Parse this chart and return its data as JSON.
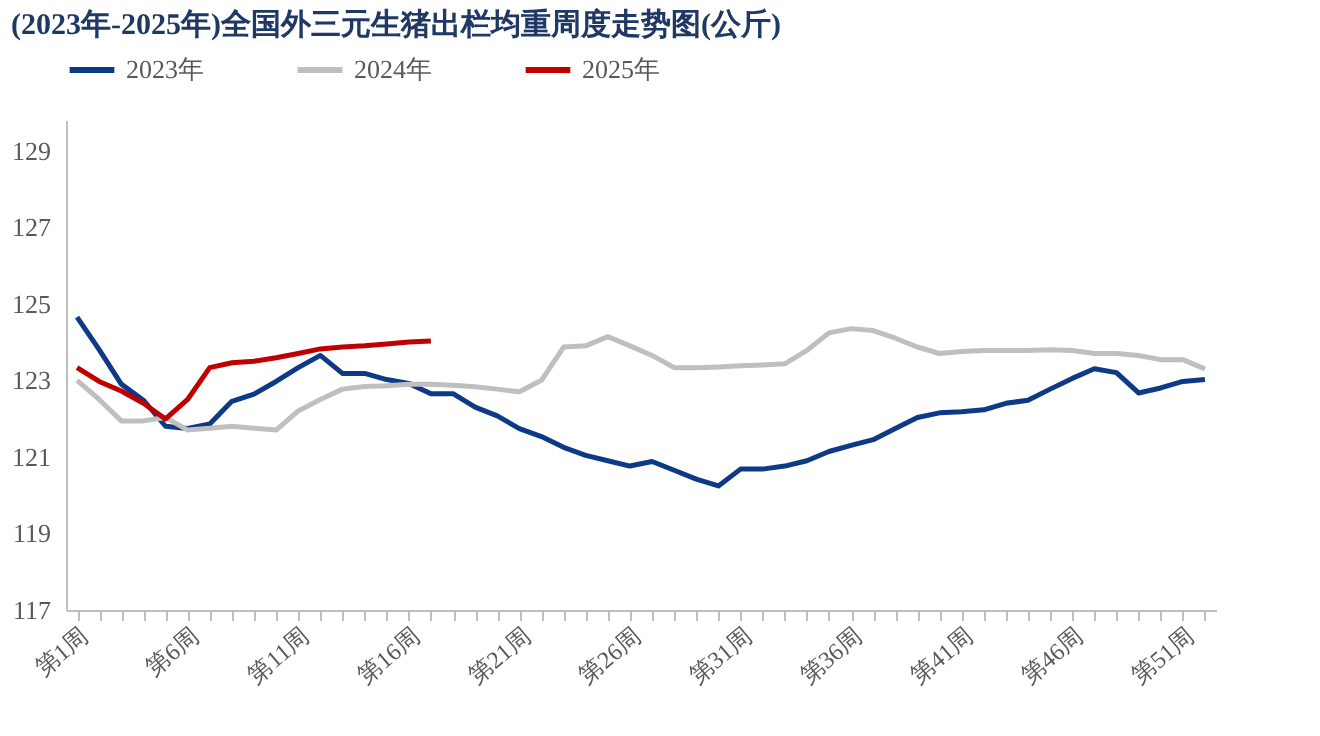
{
  "chart_data": {
    "type": "line",
    "title": "(2023年-2025年)全国外三元生猪出栏均重周度走势图(公斤)",
    "categories": [
      "第1周",
      null,
      null,
      null,
      null,
      "第6周",
      null,
      null,
      null,
      null,
      "第11周",
      null,
      null,
      null,
      null,
      "第16周",
      null,
      null,
      null,
      null,
      "第21周",
      null,
      null,
      null,
      null,
      "第26周",
      null,
      null,
      null,
      null,
      "第31周",
      null,
      null,
      null,
      null,
      "第36周",
      null,
      null,
      null,
      null,
      "第41周",
      null,
      null,
      null,
      null,
      "第46周",
      null,
      null,
      null,
      null,
      "第51周",
      null
    ],
    "series": [
      {
        "name": "2023年",
        "color": "#0d3a86",
        "values": [
          124.65,
          123.8,
          122.9,
          122.48,
          121.8,
          121.74,
          121.86,
          122.45,
          122.64,
          122.97,
          123.33,
          123.65,
          123.18,
          123.18,
          123.02,
          122.92,
          122.65,
          122.65,
          122.3,
          122.07,
          121.74,
          121.53,
          121.25,
          121.04,
          120.9,
          120.76,
          120.88,
          120.65,
          120.42,
          120.24,
          120.68,
          120.68,
          120.76,
          120.9,
          121.14,
          121.3,
          121.45,
          121.74,
          122.03,
          122.15,
          122.18,
          122.23,
          122.4,
          122.48,
          122.77,
          123.05,
          123.3,
          123.2,
          122.67,
          122.8,
          122.97,
          123.02
        ]
      },
      {
        "name": "2024年",
        "color": "#bfbfbf",
        "values": [
          123.0,
          122.5,
          121.94,
          121.94,
          122.03,
          121.7,
          121.75,
          121.8,
          121.75,
          121.7,
          122.2,
          122.5,
          122.77,
          122.84,
          122.86,
          122.9,
          122.9,
          122.87,
          122.83,
          122.77,
          122.7,
          123.0,
          123.87,
          123.9,
          124.14,
          123.9,
          123.65,
          123.33,
          123.33,
          123.35,
          123.38,
          123.4,
          123.43,
          123.78,
          124.24,
          124.35,
          124.3,
          124.1,
          123.87,
          123.7,
          123.75,
          123.78,
          123.78,
          123.78,
          123.8,
          123.78,
          123.7,
          123.7,
          123.65,
          123.54,
          123.54,
          123.3
        ]
      },
      {
        "name": "2025年",
        "color": "#c00000",
        "values": [
          123.33,
          122.97,
          122.72,
          122.4,
          121.99,
          122.5,
          123.33,
          123.46,
          123.5,
          123.59,
          123.7,
          123.82,
          123.87,
          123.9,
          123.95,
          124.0,
          124.03,
          null,
          null,
          null,
          null,
          null,
          null,
          null,
          null,
          null,
          null,
          null,
          null,
          null,
          null,
          null,
          null,
          null,
          null,
          null,
          null,
          null,
          null,
          null,
          null,
          null,
          null,
          null,
          null,
          null,
          null,
          null,
          null,
          null,
          null,
          null
        ]
      }
    ],
    "ylim": [
      117,
      129.8
    ],
    "yticks": [
      117,
      119,
      121,
      123,
      125,
      127,
      129
    ],
    "grid": false,
    "legend": "top",
    "marker": "none",
    "line_style": "solid"
  }
}
